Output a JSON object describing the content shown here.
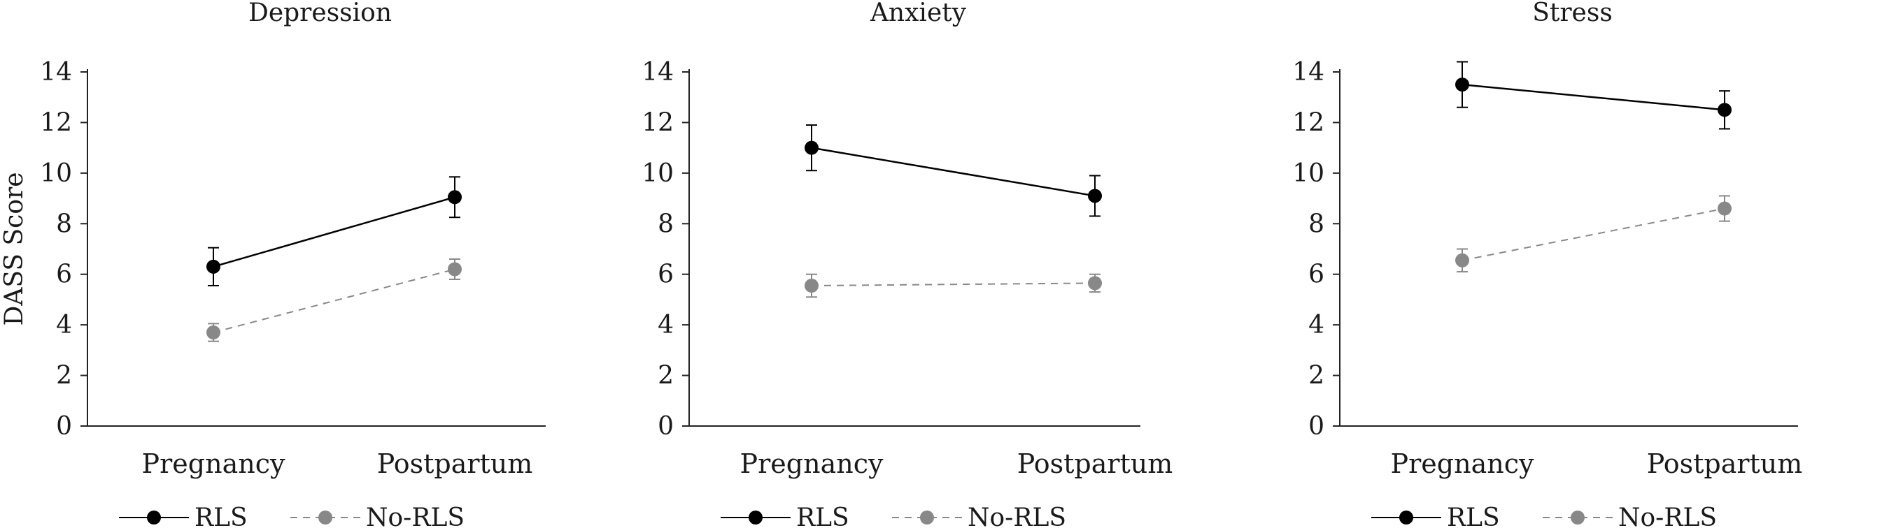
{
  "chart_data": [
    {
      "type": "line",
      "title": "Depression",
      "ylabel": "DASS Score",
      "xlabel": "",
      "categories": [
        "Pregnancy",
        "Postpartum"
      ],
      "ylim": [
        0,
        14
      ],
      "yticks": [
        "0",
        "2",
        "4",
        "6",
        "8",
        "10",
        "12",
        "14"
      ],
      "series": [
        {
          "name": "RLS",
          "values": [
            6.3,
            9.05
          ],
          "errors": [
            0.75,
            0.8
          ],
          "color": "#000000",
          "style": "solid"
        },
        {
          "name": "No-RLS",
          "values": [
            3.7,
            6.2
          ],
          "errors": [
            0.35,
            0.4
          ],
          "color": "#888888",
          "style": "dashed"
        }
      ]
    },
    {
      "type": "line",
      "title": "Anxiety",
      "ylabel": "",
      "xlabel": "",
      "categories": [
        "Pregnancy",
        "Postpartum"
      ],
      "ylim": [
        0,
        14
      ],
      "yticks": [
        "0",
        "2",
        "4",
        "6",
        "8",
        "10",
        "12",
        "14"
      ],
      "series": [
        {
          "name": "RLS",
          "values": [
            11.0,
            9.1
          ],
          "errors": [
            0.9,
            0.8
          ],
          "color": "#000000",
          "style": "solid"
        },
        {
          "name": "No-RLS",
          "values": [
            5.55,
            5.65
          ],
          "errors": [
            0.45,
            0.35
          ],
          "color": "#888888",
          "style": "dashed"
        }
      ]
    },
    {
      "type": "line",
      "title": "Stress",
      "ylabel": "",
      "xlabel": "",
      "categories": [
        "Pregnancy",
        "Postpartum"
      ],
      "ylim": [
        0,
        14
      ],
      "yticks": [
        "0",
        "2",
        "4",
        "6",
        "8",
        "10",
        "12",
        "14"
      ],
      "series": [
        {
          "name": "RLS",
          "values": [
            13.5,
            12.5
          ],
          "errors": [
            0.9,
            0.75
          ],
          "color": "#000000",
          "style": "solid"
        },
        {
          "name": "No-RLS",
          "values": [
            6.55,
            8.6
          ],
          "errors": [
            0.45,
            0.5
          ],
          "color": "#888888",
          "style": "dashed"
        }
      ]
    }
  ]
}
